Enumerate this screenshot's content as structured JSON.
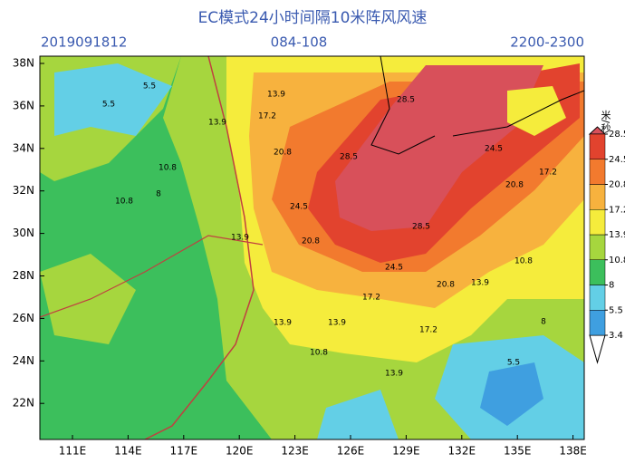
{
  "title": "EC模式24小时间隔10米阵风风速",
  "run": "2019091812",
  "lead": "084-108",
  "valid": "2200-2300",
  "lat_labels": [
    "38N",
    "36N",
    "34N",
    "32N",
    "30N",
    "28N",
    "26N",
    "24N",
    "22N"
  ],
  "lon_labels": [
    "111E",
    "114E",
    "117E",
    "120E",
    "123E",
    "126E",
    "129E",
    "132E",
    "135E",
    "138E"
  ],
  "colorbar": {
    "unit": "米/秒",
    "levels": [
      3.4,
      5.5,
      8,
      10.8,
      13.9,
      17.2,
      20.8,
      24.5,
      28.5
    ],
    "colors": [
      "#ffffff",
      "#3f9fe0",
      "#63cfe6",
      "#3cbf5c",
      "#a6d63e",
      "#f5ec3c",
      "#f7b23e",
      "#f27a2e",
      "#e2432e",
      "#d8505a"
    ]
  },
  "contour_labels": [
    "5.5",
    "5.5",
    "10.8",
    "13.9",
    "13.9",
    "17.2",
    "20.8",
    "24.5",
    "28.5",
    "20.8",
    "24.5",
    "28.5",
    "20.8",
    "17.2",
    "13.9",
    "10.8",
    "8",
    "5.5",
    "13.9",
    "10.8",
    "13.9",
    "17.2",
    "24.5",
    "20.8",
    "28.5",
    "8",
    "10.8",
    "13.9",
    "17.2",
    "13.9"
  ]
}
